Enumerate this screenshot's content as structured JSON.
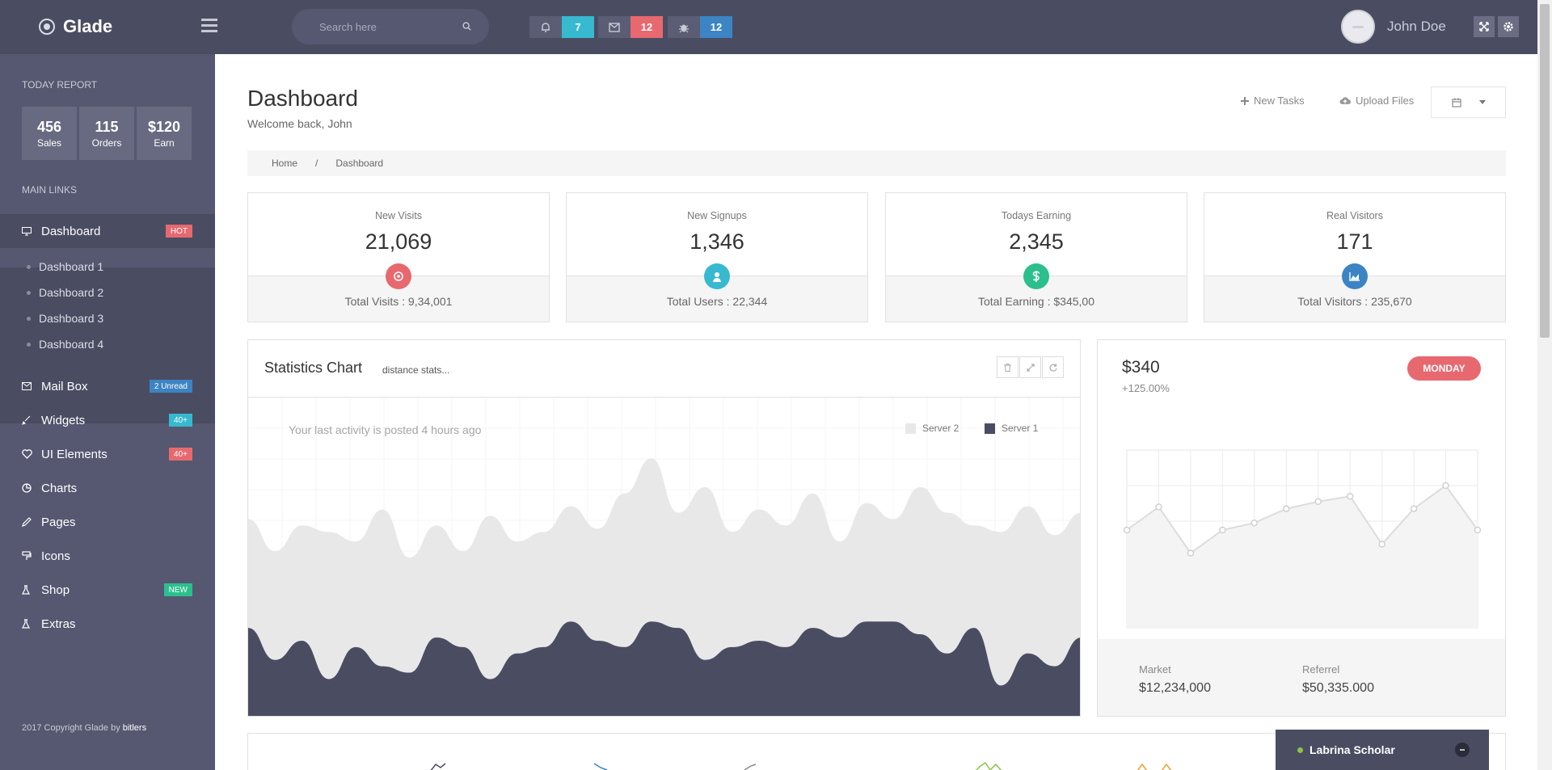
{
  "app": {
    "name": "Glade"
  },
  "topbar": {
    "search_placeholder": "Search here",
    "notifications": [
      {
        "icon": "bell-icon",
        "count": "7",
        "color": "#37b9d0"
      },
      {
        "icon": "envelope-icon",
        "count": "12",
        "color": "#e7696f"
      },
      {
        "icon": "bug-icon",
        "count": "12",
        "color": "#3c84c4"
      }
    ],
    "user_name": "John Doe"
  },
  "sidebar": {
    "today_report_label": "TODAY REPORT",
    "stats": [
      {
        "value": "456",
        "label": "Sales"
      },
      {
        "value": "115",
        "label": "Orders"
      },
      {
        "value": "$120",
        "label": "Earn"
      }
    ],
    "main_links_label": "MAIN LINKS",
    "items": [
      {
        "label": "Dashboard",
        "icon": "monitor-icon",
        "badge": "HOT",
        "badge_color": "#e7696f"
      },
      {
        "label": "Mail Box",
        "icon": "envelope-icon",
        "badge": "2 Unread",
        "badge_color": "#3c84c4"
      },
      {
        "label": "Widgets",
        "icon": "brush-icon",
        "badge": "40+",
        "badge_color": "#37b9d0"
      },
      {
        "label": "UI Elements",
        "icon": "heart-icon",
        "badge": "40+",
        "badge_color": "#e7696f"
      },
      {
        "label": "Charts",
        "icon": "pie-chart-icon"
      },
      {
        "label": "Pages",
        "icon": "pencil-icon"
      },
      {
        "label": "Icons",
        "icon": "paint-roller-icon"
      },
      {
        "label": "Shop",
        "icon": "flask-icon",
        "badge": "NEW",
        "badge_color": "#2bbf8e"
      },
      {
        "label": "Extras",
        "icon": "flask-icon"
      }
    ],
    "dashboard_submenu": [
      "Dashboard 1",
      "Dashboard 2",
      "Dashboard 3",
      "Dashboard 4"
    ],
    "copyright_prefix": "2017 Copyright Glade by",
    "copyright_author": "bitlers"
  },
  "header": {
    "title": "Dashboard",
    "subtitle": "Welcome back, John",
    "new_tasks": "New Tasks",
    "upload_files": "Upload Files"
  },
  "breadcrumb": {
    "home": "Home",
    "separator": "/",
    "current": "Dashboard"
  },
  "cards": [
    {
      "title": "New Visits",
      "value": "21,069",
      "footer": "Total Visits : 9,34,001",
      "icon": "target-icon",
      "color": "#e7696f"
    },
    {
      "title": "New Signups",
      "value": "1,346",
      "footer": "Total Users : 22,344",
      "icon": "user-icon",
      "color": "#37b9d0"
    },
    {
      "title": "Todays Earning",
      "value": "2,345",
      "footer": "Total Earning : $345,00",
      "icon": "dollar-icon",
      "color": "#2bbf8e"
    },
    {
      "title": "Real Visitors",
      "value": "171",
      "footer": "Total Visitors : 235,670",
      "icon": "area-chart-icon",
      "color": "#3c84c4"
    }
  ],
  "statistics": {
    "title": "Statistics Chart",
    "subtitle": "distance stats...",
    "activity": "Your last activity is posted 4 hours ago",
    "legend": [
      {
        "name": "Server 2",
        "color": "#e8e8e8"
      },
      {
        "name": "Server 1",
        "color": "#4a4d62"
      }
    ]
  },
  "chart_data": [
    {
      "type": "area",
      "series": [
        {
          "name": "Server 2",
          "color": "#e8e8e8",
          "values": [
            62,
            52,
            60,
            58,
            55,
            65,
            50,
            60,
            52,
            63,
            55,
            58,
            66,
            59,
            70,
            81,
            64,
            72,
            58,
            65,
            60,
            70,
            55,
            67,
            62,
            72,
            64,
            60,
            58,
            66,
            57,
            64
          ]
        },
        {
          "name": "Server 1",
          "color": "#4a4d62",
          "values": [
            28,
            18,
            24,
            12,
            22,
            16,
            14,
            25,
            22,
            12,
            20,
            22,
            30,
            24,
            22,
            30,
            28,
            18,
            22,
            24,
            22,
            28,
            25,
            30,
            30,
            26,
            20,
            28,
            10,
            20,
            16,
            25
          ]
        }
      ],
      "ylim": [
        0,
        100
      ],
      "grid": true,
      "legend_position": "top-right"
    },
    {
      "type": "line",
      "values": [
        55,
        68,
        42,
        55,
        59,
        67,
        71,
        74,
        47,
        67,
        80,
        55
      ],
      "ylim": [
        0,
        100
      ],
      "grid": true
    }
  ],
  "revenue": {
    "amount": "$340",
    "change": "+125.00%",
    "day": "MONDAY",
    "market_label": "Market",
    "market_value": "$12,234,000",
    "referral_label": "Referrel",
    "referral_value": "$50,335.000"
  },
  "chat": {
    "name": "Labrina Scholar",
    "status_color": "#8bc34a"
  }
}
